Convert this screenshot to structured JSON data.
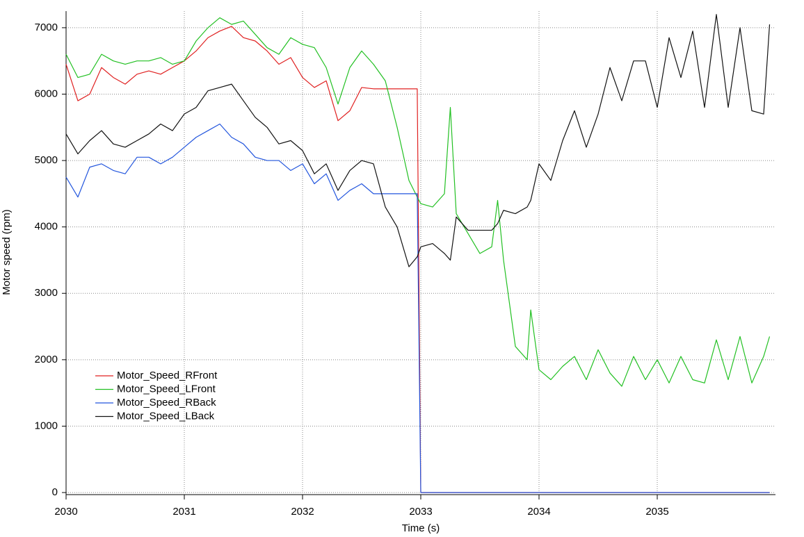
{
  "chart_data": {
    "type": "line",
    "x_label": "Time (s)",
    "y_label": "Motor speed (rpm)",
    "x": [
      2030.0,
      2030.1,
      2030.2,
      2030.3,
      2030.4,
      2030.5,
      2030.6,
      2030.7,
      2030.8,
      2030.9,
      2031.0,
      2031.1,
      2031.2,
      2031.3,
      2031.4,
      2031.5,
      2031.6,
      2031.7,
      2031.8,
      2031.9,
      2032.0,
      2032.1,
      2032.2,
      2032.3,
      2032.4,
      2032.5,
      2032.6,
      2032.7,
      2032.8,
      2032.9,
      2032.97,
      2033.0,
      2033.1,
      2033.2,
      2033.25,
      2033.3,
      2033.4,
      2033.5,
      2033.6,
      2033.65,
      2033.7,
      2033.8,
      2033.9,
      2033.93,
      2034.0,
      2034.1,
      2034.2,
      2034.3,
      2034.4,
      2034.5,
      2034.6,
      2034.7,
      2034.8,
      2034.9,
      2035.0,
      2035.1,
      2035.2,
      2035.3,
      2035.4,
      2035.5,
      2035.6,
      2035.7,
      2035.8,
      2035.9,
      2035.95
    ],
    "series": [
      {
        "name": "Motor_Speed_RFront",
        "color": "#e02020",
        "values": [
          6450,
          5900,
          6000,
          6400,
          6250,
          6150,
          6300,
          6350,
          6300,
          6400,
          6500,
          6650,
          6850,
          6950,
          7020,
          6850,
          6800,
          6650,
          6450,
          6550,
          6250,
          6100,
          6200,
          5600,
          5750,
          6100,
          6080,
          6080,
          6080,
          6080,
          6080,
          0,
          0,
          0,
          0,
          0,
          0,
          0,
          0,
          0,
          0,
          0,
          0,
          0,
          0,
          0,
          0,
          0,
          0,
          0,
          0,
          0,
          0,
          0,
          0,
          0,
          0,
          0,
          0,
          0,
          0,
          0,
          0,
          0,
          0
        ]
      },
      {
        "name": "Motor_Speed_LFront",
        "color": "#22c022",
        "values": [
          6600,
          6250,
          6300,
          6600,
          6500,
          6450,
          6500,
          6500,
          6550,
          6450,
          6500,
          6800,
          7000,
          7150,
          7050,
          7100,
          6900,
          6700,
          6600,
          6850,
          6750,
          6700,
          6400,
          5850,
          6400,
          6650,
          6450,
          6200,
          5500,
          4700,
          4450,
          4350,
          4300,
          4500,
          5800,
          4200,
          3900,
          3600,
          3700,
          4400,
          3500,
          2200,
          2000,
          2750,
          1850,
          1700,
          1900,
          2050,
          1700,
          2150,
          1800,
          1600,
          2050,
          1700,
          2000,
          1650,
          2050,
          1700,
          1650,
          2300,
          1700,
          2350,
          1650,
          2050,
          2350
        ]
      },
      {
        "name": "Motor_Speed_RBack",
        "color": "#2255dd",
        "values": [
          4750,
          4450,
          4900,
          4950,
          4850,
          4800,
          5050,
          5050,
          4950,
          5050,
          5200,
          5350,
          5450,
          5550,
          5350,
          5250,
          5050,
          5000,
          5000,
          4850,
          4950,
          4650,
          4800,
          4400,
          4550,
          4650,
          4500,
          4500,
          4500,
          4500,
          4500,
          0,
          0,
          0,
          0,
          0,
          0,
          0,
          0,
          0,
          0,
          0,
          0,
          0,
          0,
          0,
          0,
          0,
          0,
          0,
          0,
          0,
          0,
          0,
          0,
          0,
          0,
          0,
          0,
          0,
          0,
          0,
          0,
          0,
          0
        ]
      },
      {
        "name": "Motor_Speed_LBack",
        "color": "#111111",
        "values": [
          5400,
          5100,
          5300,
          5450,
          5250,
          5200,
          5300,
          5400,
          5550,
          5450,
          5700,
          5800,
          6050,
          6100,
          6150,
          5900,
          5650,
          5500,
          5250,
          5300,
          5150,
          4800,
          4950,
          4550,
          4850,
          5000,
          4950,
          4300,
          4000,
          3400,
          3550,
          3700,
          3750,
          3600,
          3500,
          4150,
          3950,
          3950,
          3950,
          4050,
          4250,
          4200,
          4300,
          4400,
          4950,
          4700,
          5300,
          5750,
          5200,
          5700,
          6400,
          5900,
          6500,
          6500,
          5800,
          6850,
          6250,
          6950,
          5800,
          7200,
          5800,
          7000,
          5750,
          5700,
          7050
        ]
      }
    ],
    "xlim": [
      2030,
      2036
    ],
    "ylim": [
      0,
      7250
    ],
    "xticks": [
      2030,
      2031,
      2032,
      2033,
      2034,
      2035
    ],
    "yticks": [
      0,
      1000,
      2000,
      3000,
      4000,
      5000,
      6000,
      7000
    ],
    "grid": true,
    "legend": "lower left"
  }
}
